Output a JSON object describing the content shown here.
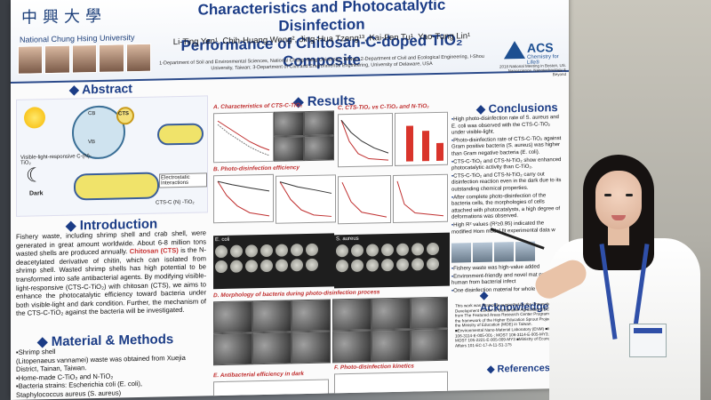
{
  "poster": {
    "university_cn": "中興大學",
    "university_en": "National Chung Hsing University",
    "title_line1": "Characteristics and Photocatalytic Disinfection",
    "title_line2": "Performance of Chitosan-C-doped TiO₂ Composite",
    "authors_line1": "Li-Ting Yen¹, Chih-Huang Weng², Jing-Hua Tzeng¹³, Kai-Fen Tu¹, Yao-Tung Lin¹",
    "affiliations": "1-Department of Soil and Environmental Sciences, National Chung Hsing University, Taiwan; 2-Department of Civil and Ecological Engineering, I-Shou University, Taiwan; 3-Department of Civil and Environmental Engineering, University of Delaware, USA",
    "acs_name": "ACS",
    "acs_tagline": "Chemistry for Life®",
    "meeting": "2018 National Meeting in Boston, US. Nanoscience, Nanotechnology & Beyond",
    "sections": {
      "abstract": "Abstract",
      "results": "Results",
      "conclusions": "Conclusions",
      "introduction": "Introduction",
      "materials": "Material & Methods",
      "acknowledgement": "Acknowledgeme",
      "references": "References"
    },
    "diagram_labels": {
      "cb": "CB",
      "vb": "VB",
      "cts": "CTS",
      "dark": "Dark",
      "electrostatic": "Electrostatic Interactions",
      "visible_light": "Visible-light-responsive C-(N)-TiO₂",
      "cts_cn": "CTS-C (N) -TiO₂"
    },
    "introduction_text_a": "Fishery waste, including shrimp shell and crab shell, were generated in great amount worldwide. About 6-8 million tons wasted shells are produced annually.",
    "chitosan_word": "Chitosan (CTS)",
    "introduction_text_b": "is the N-deacetylated derivative of chitin, which can isolated from shrimp shell. Wasted shrimp shells has high potential to be transformed into safe antibacterial agents. By modifying visible-light-responsive (CTS-C-TiO₂) with chitosan (CTS), we aims to enhance the photocatalytic efficiency toward bacteria under both visible-light and dark condition. Further, the mechanism of the CTS-C-TiO₂ against the bacteria will be investigated.",
    "materials_items": [
      "▪Shrimp shell",
      "(Litopenaeus vannamei) waste was obtained from Xuejia District, Tainan, Taiwan.",
      "▪Home-made C-TiO₂ and N-TiO₂",
      "▪Bacteria strains: Escherichia coli (E. coli),",
      "Staphylococcus aureus (S. aureus)"
    ],
    "panels": {
      "a": "A. Characteristics of CTS-C-TiO₂",
      "b": "B. Photo-disinfection efficiency",
      "c": "C. CTS-TiO₂ vs C-TiO₂ and N-TiO₂",
      "d": "D. Morphology of bacteria during photo-disinfection process",
      "e": "E. Antibacterial efficiency in dark",
      "f": "F. Photo-disinfection kinetics"
    },
    "conclusions": [
      "High photo-disinfection rate of S. aureus and E. coli was observed with the CTS-C-TiO₂ under visible-light.",
      "Photo-disinfection rate of CTS-C-TiO₂ against Gram positive bacteria (S. aureus) was higher than Gram negative bacteria (E. coli).",
      "CTS-C-TiO₂ and CTS-N-TiO₂ show enhanced photocatalytic activity than C-TiO₂.",
      "CTS-C-TiO₂ and CTS-N-TiO₂ carry out disinfection reaction even in the dark due to its outstanding chemical properties.",
      "After complete photo-disinfection of the bacteria cells, the morphologies of cells attached with photocatalysts, a high degree of deformations was observed.",
      "High R² values (R²≥0.95) indicated the modified Hom model fit experimental data w",
      "Fishery waste was high-value added",
      "Environment-friendly and novel mat protects human from bacterial infect",
      "One disinfection material for whole d"
    ],
    "ack_text": "This work was financially supported by the \"Innovation and Development Center of Sustainable Agriculture (IDCSA)\" from The Featured Areas Research Center Program within the framework of the Higher Education Sprout Project by the Ministry of Education (MOE) in Taiwan. ■Environmental Nano-Material Laboratory (ENM) ■MOST 106-3114-E-005-001-; MOST 106-3114-E-005-MY3; MOST 105-2221-E-005-009-MY3 ■Ministry of Economic Affairs 101-EC-17-A-11-S1-175",
    "dish_e_coli": "E. coli",
    "dish_s_aureus": "S. aureus"
  },
  "colors": {
    "title_blue": "#1b3c86",
    "accent_red": "#c83232",
    "lanyard_blue": "#2f4fa8"
  }
}
